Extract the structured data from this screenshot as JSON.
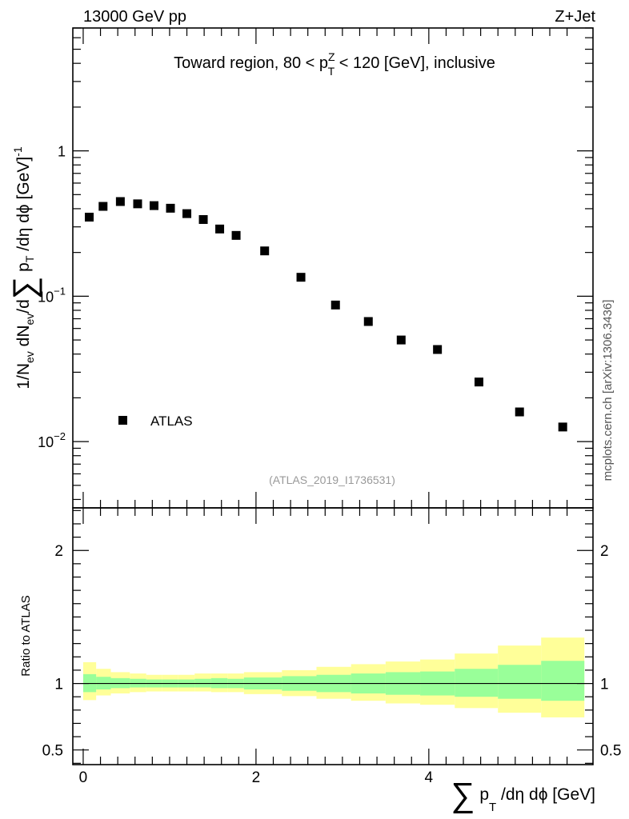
{
  "header": {
    "left_label": "13000 GeV pp",
    "right_label": "Z+Jet"
  },
  "side_label": "mcplots.cern.ch [arXiv:1306.3436]",
  "chart_data": {
    "type": "scatter",
    "title_parts": {
      "prefix": "Toward region, 80 < p",
      "sup": "Z",
      "sub": "T",
      "suffix": " < 120 [GeV], inclusive"
    },
    "analysis_label": "(ATLAS_2019_I1736531)",
    "legend": {
      "label": "ATLAS",
      "marker": "filled-square",
      "placement": "lower-left"
    },
    "ylabel_main": {
      "a": "1/N",
      "a_sub": "ev",
      "b": " dN",
      "b_sub": "ev",
      "c": "/d",
      "sigma": "∑",
      "d": " p",
      "d_sub": "T",
      "e": " /dη dϕ  [GeV]",
      "e_sup": "-1"
    },
    "xlabel": {
      "sigma": "∑",
      "p": " p",
      "p_sub": "T",
      "rest": " /dη dϕ [GeV]"
    },
    "ylabel_ratio": "Ratio to ATLAS",
    "yscale": "log",
    "ylim": [
      0.0035,
      7.0
    ],
    "xlim": [
      -0.12,
      5.9
    ],
    "major_y_ticks": [
      {
        "value": 1,
        "base": "1",
        "exp": ""
      },
      {
        "value": 0.1,
        "base": "10",
        "exp": "−1"
      },
      {
        "value": 0.01,
        "base": "10",
        "exp": "−2"
      }
    ],
    "x_ticks": [
      {
        "value": 0,
        "label": "0"
      },
      {
        "value": 2,
        "label": "2"
      },
      {
        "value": 4,
        "label": "4"
      }
    ],
    "points": {
      "x": [
        0.07,
        0.23,
        0.43,
        0.63,
        0.82,
        1.01,
        1.2,
        1.39,
        1.58,
        1.77,
        2.1,
        2.52,
        2.92,
        3.3,
        3.68,
        4.1,
        4.58,
        5.05,
        5.55
      ],
      "y": [
        0.35,
        0.415,
        0.448,
        0.432,
        0.42,
        0.403,
        0.37,
        0.337,
        0.29,
        0.262,
        0.205,
        0.135,
        0.087,
        0.067,
        0.05,
        0.043,
        0.0257,
        0.016,
        0.0126
      ]
    },
    "ratio": {
      "ylim": [
        0.39,
        2.32
      ],
      "ticks": [
        {
          "value": 2,
          "label": "2"
        },
        {
          "value": 1,
          "label": "1"
        },
        {
          "value": 0.5,
          "label": "0.5"
        }
      ],
      "bin_edges": [
        0.0,
        0.15,
        0.32,
        0.54,
        0.73,
        0.91,
        1.1,
        1.29,
        1.48,
        1.67,
        1.86,
        2.3,
        2.7,
        3.1,
        3.5,
        3.9,
        4.3,
        4.8,
        5.3,
        5.8
      ],
      "green_up": [
        1.07,
        1.05,
        1.04,
        1.035,
        1.03,
        1.03,
        1.03,
        1.035,
        1.04,
        1.035,
        1.045,
        1.055,
        1.065,
        1.075,
        1.085,
        1.09,
        1.11,
        1.14,
        1.17
      ],
      "green_dn": [
        0.935,
        0.955,
        0.965,
        0.97,
        0.97,
        0.97,
        0.97,
        0.97,
        0.965,
        0.965,
        0.955,
        0.945,
        0.935,
        0.925,
        0.915,
        0.91,
        0.9,
        0.885,
        0.87
      ],
      "yellow_up": [
        1.16,
        1.11,
        1.085,
        1.075,
        1.065,
        1.065,
        1.065,
        1.075,
        1.075,
        1.075,
        1.085,
        1.1,
        1.125,
        1.145,
        1.165,
        1.18,
        1.225,
        1.285,
        1.345
      ],
      "yellow_dn": [
        0.875,
        0.91,
        0.925,
        0.935,
        0.94,
        0.94,
        0.94,
        0.94,
        0.935,
        0.935,
        0.92,
        0.905,
        0.885,
        0.87,
        0.85,
        0.84,
        0.815,
        0.78,
        0.745
      ]
    }
  },
  "colors": {
    "green": "#99ff99",
    "yellow": "#ffff99",
    "marker": "#000000",
    "analysis_label": "#999999",
    "side_label": "#555555"
  }
}
